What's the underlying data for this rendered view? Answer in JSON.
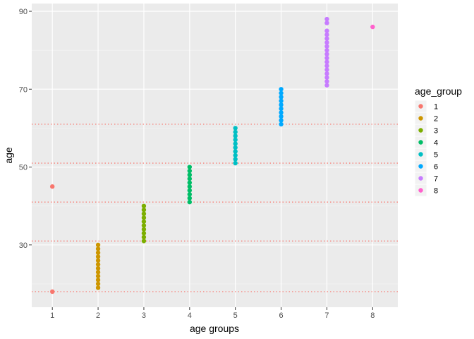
{
  "chart_data": {
    "type": "scatter",
    "title": "",
    "xlabel": "age groups",
    "ylabel": "age",
    "xlim": [
      0.55,
      8.55
    ],
    "ylim": [
      14,
      92
    ],
    "x_ticks": [
      1,
      2,
      3,
      4,
      5,
      6,
      7,
      8
    ],
    "x_tick_labels": [
      "1",
      "2",
      "3",
      "4",
      "5",
      "6",
      "7",
      "8"
    ],
    "y_ticks": [
      30,
      50,
      70,
      90
    ],
    "y_tick_labels": [
      "30",
      "50",
      "70",
      "90"
    ],
    "y_minor_ticks": [
      20,
      40,
      60,
      80
    ],
    "grid": true,
    "legend": {
      "title": "age_group",
      "position": "right"
    },
    "hlines": {
      "values": [
        18,
        31,
        41,
        51,
        61
      ],
      "color": "#F8766D",
      "style": "dotted"
    },
    "series": [
      {
        "name": "1",
        "color": "#F8766D",
        "x": 1,
        "y": [
          18,
          45
        ]
      },
      {
        "name": "2",
        "color": "#CD9600",
        "x": 2,
        "y": [
          19,
          20,
          21,
          22,
          23,
          24,
          25,
          26,
          27,
          28,
          29,
          30
        ]
      },
      {
        "name": "3",
        "color": "#7CAE00",
        "x": 3,
        "y": [
          31,
          32,
          33,
          34,
          35,
          36,
          37,
          38,
          39,
          40
        ]
      },
      {
        "name": "4",
        "color": "#00BE67",
        "x": 4,
        "y": [
          41,
          42,
          43,
          44,
          45,
          46,
          47,
          48,
          49,
          50
        ]
      },
      {
        "name": "5",
        "color": "#00BFC4",
        "x": 5,
        "y": [
          51,
          52,
          53,
          54,
          55,
          56,
          57,
          58,
          59,
          60
        ]
      },
      {
        "name": "6",
        "color": "#00A9FF",
        "x": 6,
        "y": [
          61,
          62,
          63,
          64,
          65,
          66,
          67,
          68,
          69,
          70
        ]
      },
      {
        "name": "7",
        "color": "#C77CFF",
        "x": 7,
        "y": [
          71,
          72,
          73,
          74,
          75,
          76,
          77,
          78,
          79,
          80,
          81,
          82,
          83,
          84,
          85,
          87,
          88
        ]
      },
      {
        "name": "8",
        "color": "#FF61CC",
        "x": 8,
        "y": [
          86
        ]
      }
    ]
  }
}
